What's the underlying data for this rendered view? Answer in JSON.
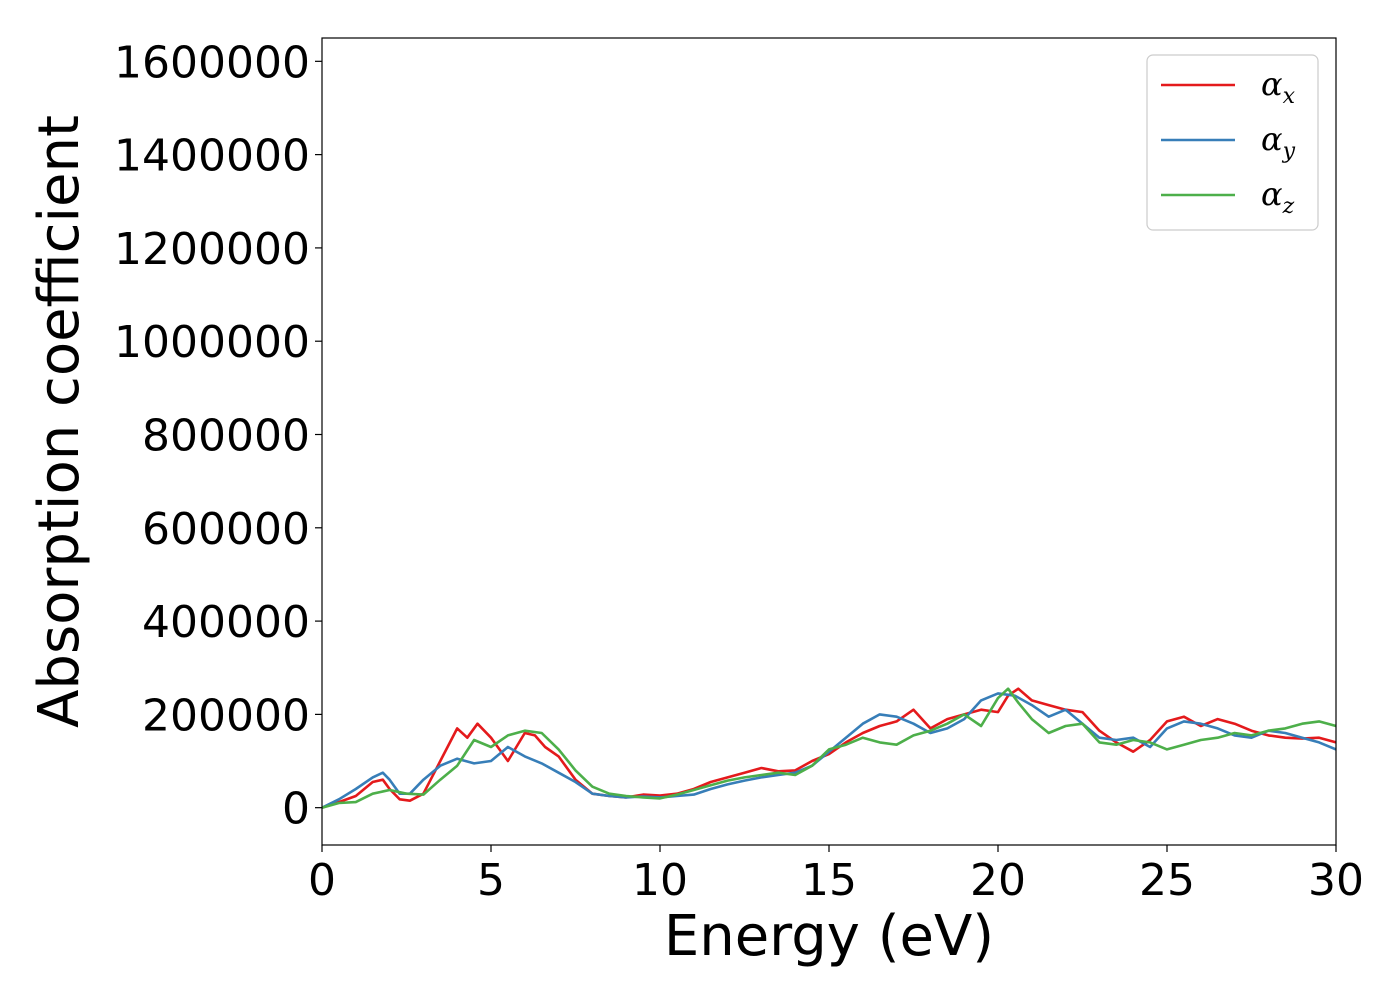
{
  "chart_data": {
    "type": "line",
    "title": "",
    "xlabel": "Energy (eV)",
    "ylabel": "Absorption coefficient",
    "xlim": [
      0,
      30
    ],
    "ylim": [
      -80000,
      1650000
    ],
    "xticks": [
      0,
      5,
      10,
      15,
      20,
      25,
      30
    ],
    "yticks": [
      0,
      200000,
      400000,
      600000,
      800000,
      1000000,
      1200000,
      1400000,
      1600000
    ],
    "grid": false,
    "legend_position": "top-right",
    "series": [
      {
        "name": "αx",
        "symbol": "α",
        "subscript": "x",
        "color": "#e41a1c",
        "x": [
          0,
          0.5,
          1,
          1.5,
          1.8,
          2,
          2.3,
          2.6,
          3,
          3.5,
          4,
          4.3,
          4.6,
          5,
          5.5,
          6,
          6.3,
          6.6,
          7,
          7.5,
          8,
          8.5,
          9,
          9.5,
          10,
          10.5,
          11,
          11.5,
          12,
          12.5,
          13,
          13.5,
          14,
          14.5,
          15,
          15.5,
          16,
          16.5,
          17,
          17.5,
          18,
          18.5,
          19,
          19.5,
          20,
          20.3,
          20.6,
          21,
          21.5,
          22,
          22.5,
          23,
          23.5,
          24,
          24.5,
          25,
          25.5,
          26,
          26.5,
          27,
          27.5,
          28,
          28.5,
          29,
          29.5,
          30
        ],
        "y": [
          0,
          12000,
          25000,
          55000,
          60000,
          40000,
          18000,
          15000,
          30000,
          100000,
          170000,
          150000,
          180000,
          150000,
          100000,
          160000,
          155000,
          130000,
          110000,
          60000,
          30000,
          25000,
          22000,
          28000,
          26000,
          30000,
          40000,
          55000,
          65000,
          75000,
          85000,
          78000,
          80000,
          100000,
          115000,
          140000,
          160000,
          175000,
          185000,
          210000,
          170000,
          190000,
          200000,
          210000,
          205000,
          240000,
          255000,
          230000,
          220000,
          210000,
          205000,
          165000,
          140000,
          120000,
          145000,
          185000,
          195000,
          175000,
          190000,
          180000,
          165000,
          155000,
          150000,
          148000,
          150000,
          140000
        ]
      },
      {
        "name": "αy",
        "symbol": "α",
        "subscript": "y",
        "color": "#377eb8",
        "x": [
          0,
          0.5,
          1,
          1.5,
          1.8,
          2,
          2.3,
          2.6,
          3,
          3.5,
          4,
          4.5,
          5,
          5.5,
          6,
          6.5,
          7,
          7.5,
          8,
          8.5,
          9,
          9.5,
          10,
          10.5,
          11,
          11.5,
          12,
          12.5,
          13,
          13.5,
          14,
          14.5,
          15,
          15.5,
          16,
          16.5,
          17,
          17.5,
          18,
          18.5,
          19,
          19.5,
          20,
          20.5,
          21,
          21.5,
          22,
          22.5,
          23,
          23.5,
          24,
          24.5,
          25,
          25.5,
          26,
          26.5,
          27,
          27.5,
          28,
          28.5,
          29,
          29.5,
          30
        ],
        "y": [
          0,
          18000,
          40000,
          65000,
          75000,
          60000,
          30000,
          30000,
          60000,
          90000,
          105000,
          95000,
          100000,
          130000,
          110000,
          95000,
          75000,
          55000,
          30000,
          25000,
          22000,
          24000,
          22000,
          25000,
          28000,
          40000,
          50000,
          58000,
          65000,
          70000,
          75000,
          90000,
          120000,
          150000,
          180000,
          200000,
          195000,
          180000,
          160000,
          170000,
          190000,
          230000,
          245000,
          240000,
          220000,
          195000,
          210000,
          180000,
          150000,
          145000,
          150000,
          130000,
          170000,
          185000,
          180000,
          170000,
          155000,
          150000,
          165000,
          160000,
          150000,
          140000,
          125000
        ]
      },
      {
        "name": "αz",
        "symbol": "α",
        "subscript": "z",
        "color": "#4daf4a",
        "x": [
          0,
          0.5,
          1,
          1.5,
          2,
          2.5,
          3,
          3.5,
          4,
          4.5,
          5,
          5.5,
          6,
          6.5,
          7,
          7.5,
          8,
          8.5,
          9,
          9.5,
          10,
          10.5,
          11,
          11.5,
          12,
          12.5,
          13,
          13.5,
          14,
          14.5,
          15,
          15.5,
          16,
          16.5,
          17,
          17.5,
          18,
          18.5,
          19,
          19.5,
          20,
          20.3,
          20.6,
          21,
          21.5,
          22,
          22.5,
          23,
          23.5,
          24,
          24.5,
          25,
          25.5,
          26,
          26.5,
          27,
          27.5,
          28,
          28.5,
          29,
          29.5,
          30
        ],
        "y": [
          0,
          10000,
          12000,
          30000,
          38000,
          30000,
          28000,
          60000,
          90000,
          145000,
          130000,
          155000,
          165000,
          160000,
          125000,
          80000,
          45000,
          30000,
          25000,
          22000,
          20000,
          28000,
          38000,
          48000,
          58000,
          65000,
          70000,
          75000,
          70000,
          90000,
          125000,
          135000,
          150000,
          140000,
          135000,
          155000,
          165000,
          180000,
          200000,
          175000,
          235000,
          255000,
          225000,
          190000,
          160000,
          175000,
          180000,
          140000,
          135000,
          145000,
          140000,
          125000,
          135000,
          145000,
          150000,
          160000,
          155000,
          165000,
          170000,
          180000,
          185000,
          175000
        ]
      }
    ]
  }
}
